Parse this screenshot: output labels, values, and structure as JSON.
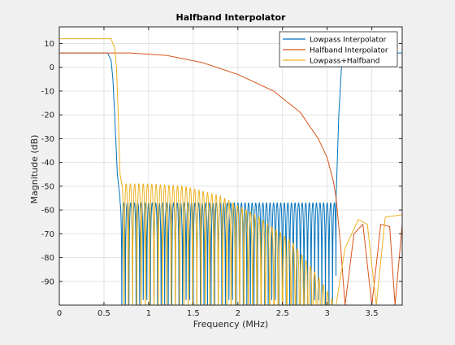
{
  "chart_data": {
    "type": "line",
    "title": "Halfband Interpolator",
    "xlabel": "Frequency (MHz)",
    "ylabel": "Magnitude (dB)",
    "xlim": [
      0,
      3.84
    ],
    "ylim": [
      -100,
      17
    ],
    "xticks": [
      0,
      0.5,
      1,
      1.5,
      2,
      2.5,
      3,
      3.5
    ],
    "xtick_labels": [
      "0",
      "0.5",
      "1",
      "1.5",
      "2",
      "2.5",
      "3",
      "3.5"
    ],
    "yticks": [
      10,
      0,
      -10,
      -20,
      -30,
      -40,
      -50,
      -60,
      -70,
      -80,
      -90
    ],
    "ytick_labels": [
      "10",
      "0",
      "-10",
      "-20",
      "-30",
      "-40",
      "-50",
      "-60",
      "-70",
      "-80",
      "-90"
    ],
    "grid": true,
    "legend_position": "top-right",
    "series": [
      {
        "name": "Lowpass Interpolator",
        "color": "#0072BD",
        "passband_db": 6,
        "passband_edge_mhz": 0.55,
        "stopband_start_mhz": 0.68,
        "stopband_ripple_top_db": -55,
        "image_start_mhz": 3.1,
        "image_peak_mhz": 3.2,
        "points": [
          [
            0,
            6
          ],
          [
            0.54,
            6
          ],
          [
            0.58,
            3
          ],
          [
            0.6,
            -5
          ],
          [
            0.62,
            -20
          ],
          [
            0.65,
            -45
          ],
          [
            0.68,
            -55
          ],
          [
            3.1,
            -55
          ],
          [
            3.13,
            -20
          ],
          [
            3.16,
            0
          ],
          [
            3.2,
            6
          ],
          [
            3.84,
            6
          ]
        ]
      },
      {
        "name": "Halfband Interpolator",
        "color": "#D95319",
        "points": [
          [
            0,
            6
          ],
          [
            0.8,
            6
          ],
          [
            1.2,
            5
          ],
          [
            1.6,
            2
          ],
          [
            2.0,
            -3
          ],
          [
            2.4,
            -10
          ],
          [
            2.7,
            -19
          ],
          [
            2.9,
            -30
          ],
          [
            3.0,
            -38
          ],
          [
            3.07,
            -48
          ],
          [
            3.1,
            -55
          ],
          [
            3.15,
            -75
          ],
          [
            3.2,
            -100
          ],
          [
            3.3,
            -70
          ],
          [
            3.4,
            -66
          ],
          [
            3.5,
            -100
          ],
          [
            3.6,
            -66
          ],
          [
            3.7,
            -67
          ],
          [
            3.76,
            -100
          ],
          [
            3.84,
            -66
          ]
        ]
      },
      {
        "name": "Lowpass+Halfband",
        "color": "#EDB120",
        "passband_db": 12,
        "passband_edge_mhz": 0.6,
        "stopband_start_mhz": 0.7,
        "points": [
          [
            0,
            12
          ],
          [
            0.58,
            12
          ],
          [
            0.62,
            8
          ],
          [
            0.64,
            0
          ],
          [
            0.66,
            -20
          ],
          [
            0.68,
            -45
          ],
          [
            0.7,
            -49
          ],
          [
            1.0,
            -49
          ],
          [
            1.4,
            -50
          ],
          [
            1.8,
            -54
          ],
          [
            2.2,
            -62
          ],
          [
            2.6,
            -73
          ],
          [
            2.9,
            -88
          ],
          [
            3.1,
            -100
          ],
          [
            3.2,
            -76
          ],
          [
            3.35,
            -64
          ],
          [
            3.45,
            -66
          ],
          [
            3.55,
            -100
          ],
          [
            3.65,
            -63
          ],
          [
            3.84,
            -62
          ]
        ]
      }
    ]
  }
}
